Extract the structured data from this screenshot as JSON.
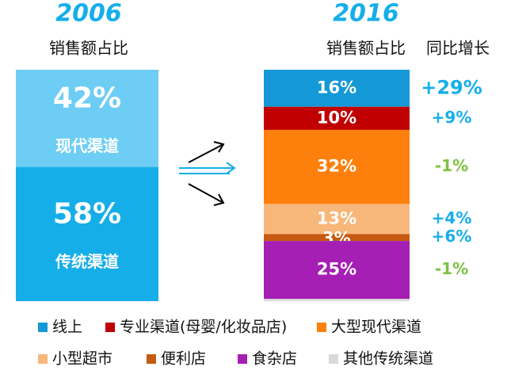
{
  "chart_data": [
    {
      "type": "stacked-bar",
      "title": "2006",
      "subtitle": "销售额占比",
      "legend": false,
      "series": [
        {
          "name": "现代渠道",
          "color": "#6dcdf4",
          "values": [
            42
          ],
          "value_labels": [
            "42%"
          ]
        },
        {
          "name": "传统渠道",
          "color": "#16aee9",
          "values": [
            58
          ],
          "value_labels": [
            "58%"
          ]
        }
      ]
    },
    {
      "type": "stacked-bar",
      "title": "2016",
      "subtitle": "销售额占比",
      "growth_title": "同比增长",
      "legend": true,
      "series": [
        {
          "name": "线上",
          "color": "#1499d6",
          "values": [
            16
          ],
          "value_labels": [
            "16%"
          ],
          "growth": 29,
          "growth_label": "+29%",
          "growth_color": "#16aee9"
        },
        {
          "name": "专业渠道(母婴/化妆品店)",
          "color": "#c00000",
          "values": [
            10
          ],
          "value_labels": [
            "10%"
          ],
          "growth": 9,
          "growth_label": "+9%",
          "growth_color": "#16aee9"
        },
        {
          "name": "大型现代渠道",
          "color": "#fd800c",
          "values": [
            32
          ],
          "value_labels": [
            "32%"
          ],
          "growth": -1,
          "growth_label": "-1%",
          "growth_color": "#7dc242"
        },
        {
          "name": "小型超市",
          "color": "#f8b77a",
          "values": [
            13
          ],
          "value_labels": [
            "13%"
          ],
          "growth": 4,
          "growth_label": "+4%",
          "growth_color": "#16aee9"
        },
        {
          "name": "便利店",
          "color": "#c55a11",
          "values": [
            3
          ],
          "value_labels": [
            "3%"
          ],
          "growth": 6,
          "growth_label": "+6%",
          "growth_color": "#16aee9"
        },
        {
          "name": "食杂店",
          "color": "#a51fb4",
          "values": [
            25
          ],
          "value_labels": [
            "25%"
          ],
          "growth": -1,
          "growth_label": "-1%",
          "growth_color": "#7dc242"
        },
        {
          "name": "其他传统渠道",
          "color": "#d9d9d9",
          "values": [
            1
          ]
        }
      ]
    }
  ]
}
